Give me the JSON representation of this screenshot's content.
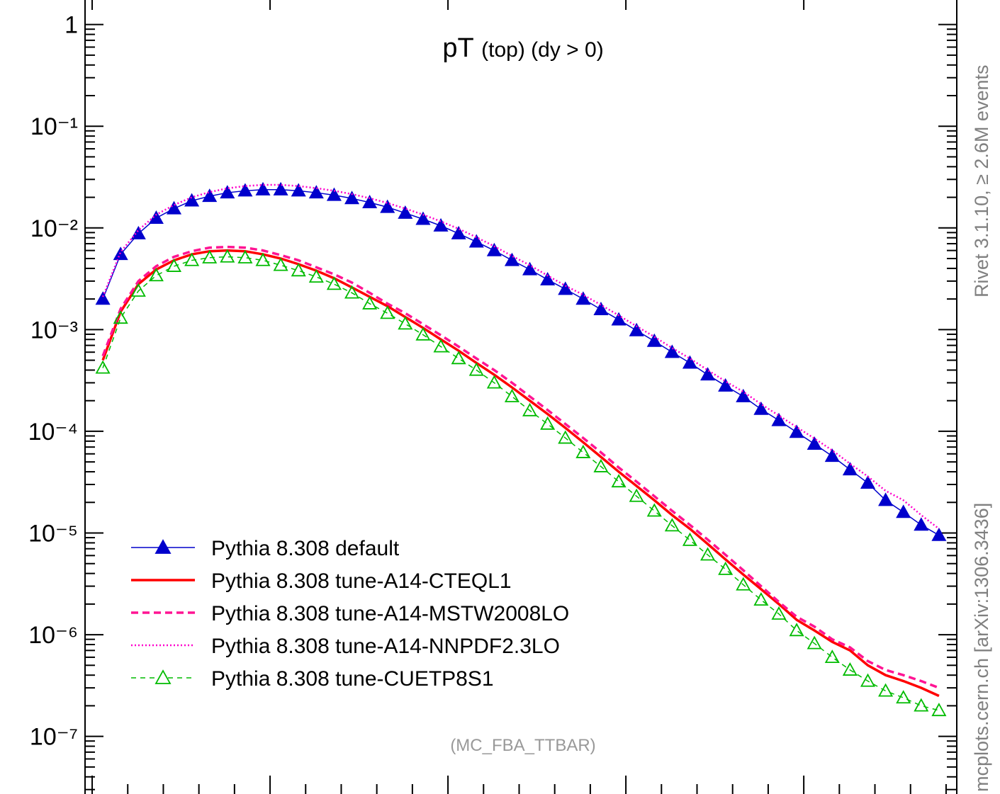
{
  "chart_data": {
    "type": "line",
    "title": {
      "main": "pT",
      "sub": "(top) (dy > 0)"
    },
    "watermark": "(MC_FBA_TTBAR)",
    "side_labels": {
      "right_top": "Rivet 3.1.10, ≥ 2.6M events",
      "right_bottom": "mcplots.cern.ch [arXiv:1306.3436]"
    },
    "y_scale": "log",
    "ylim": [
      2e-08,
      1.8
    ],
    "xlim": [
      0,
      49
    ],
    "y_tick_labels": [
      {
        "value": 1,
        "label": "1"
      },
      {
        "value": 0.1,
        "label": "10⁻¹"
      },
      {
        "value": 0.01,
        "label": "10⁻²"
      },
      {
        "value": 0.001,
        "label": "10⁻³"
      },
      {
        "value": 0.0001,
        "label": "10⁻⁴"
      },
      {
        "value": 1e-05,
        "label": "10⁻⁵"
      },
      {
        "value": 1e-06,
        "label": "10⁻⁶"
      },
      {
        "value": 1e-07,
        "label": "10⁻⁷"
      }
    ],
    "legend_position": "bottom-left",
    "grid": false,
    "x_bins": [
      1,
      2,
      3,
      4,
      5,
      6,
      7,
      8,
      9,
      10,
      11,
      12,
      13,
      14,
      15,
      16,
      17,
      18,
      19,
      20,
      21,
      22,
      23,
      24,
      25,
      26,
      27,
      28,
      29,
      30,
      31,
      32,
      33,
      34,
      35,
      36,
      37,
      38,
      39,
      40,
      41,
      42,
      43,
      44,
      45,
      46,
      47,
      48
    ],
    "series": [
      {
        "name": "Pythia 8.308 default",
        "color": "#0000cc",
        "style": "solid-thin-filled-triangle",
        "values": [
          0.002,
          0.0055,
          0.0088,
          0.0125,
          0.0155,
          0.0185,
          0.0205,
          0.0222,
          0.0232,
          0.0238,
          0.0238,
          0.0232,
          0.0222,
          0.021,
          0.0195,
          0.0178,
          0.016,
          0.014,
          0.0122,
          0.0105,
          0.0088,
          0.0073,
          0.006,
          0.0048,
          0.0039,
          0.0031,
          0.0025,
          0.002,
          0.00158,
          0.00125,
          0.00098,
          0.00077,
          0.0006,
          0.00047,
          0.00036,
          0.00028,
          0.00022,
          0.000165,
          0.000128,
          9.8e-05,
          7.5e-05,
          5.7e-05,
          4.2e-05,
          3.1e-05,
          2.1e-05,
          1.6e-05,
          1.2e-05,
          9.5e-06
        ]
      },
      {
        "name": "Pythia 8.308 tune-A14-CTEQL1",
        "color": "#ff0000",
        "style": "solid-thick",
        "values": [
          0.0005,
          0.0015,
          0.0028,
          0.0039,
          0.0048,
          0.0055,
          0.0059,
          0.006,
          0.0059,
          0.0055,
          0.005,
          0.0044,
          0.0038,
          0.0032,
          0.0026,
          0.0021,
          0.0017,
          0.00133,
          0.00104,
          0.0008,
          0.00062,
          0.00047,
          0.00036,
          0.00027,
          0.0002,
          0.000148,
          0.000108,
          7.8e-05,
          5.6e-05,
          4e-05,
          2.9e-05,
          2.1e-05,
          1.5e-05,
          1.1e-05,
          7.8e-06,
          5.5e-06,
          3.9e-06,
          2.8e-06,
          2e-06,
          1.4e-06,
          1.1e-06,
          8.5e-07,
          7e-07,
          5e-07,
          4e-07,
          3.5e-07,
          3e-07,
          2.5e-07
        ]
      },
      {
        "name": "Pythia 8.308 tune-A14-MSTW2008LO",
        "color": "#ff1493",
        "style": "dashed",
        "values": [
          0.00055,
          0.0016,
          0.003,
          0.0042,
          0.0052,
          0.0059,
          0.0064,
          0.0065,
          0.0064,
          0.006,
          0.0054,
          0.0048,
          0.0041,
          0.0035,
          0.0029,
          0.0023,
          0.0018,
          0.00145,
          0.00113,
          0.00088,
          0.00068,
          0.00052,
          0.0004,
          0.0003,
          0.00022,
          0.000162,
          0.000118,
          8.6e-05,
          6.2e-05,
          4.4e-05,
          3.2e-05,
          2.3e-05,
          1.65e-05,
          1.2e-05,
          8.6e-06,
          6.1e-06,
          4.3e-06,
          3e-06,
          2.1e-06,
          1.5e-06,
          1.2e-06,
          9e-07,
          7.5e-07,
          5.5e-07,
          4.5e-07,
          4e-07,
          3.5e-07,
          3e-07
        ]
      },
      {
        "name": "Pythia 8.308 tune-A14-NNPDF2.3LO",
        "color": "#ff00cc",
        "style": "dotted",
        "values": [
          0.0021,
          0.0058,
          0.0095,
          0.0135,
          0.0168,
          0.02,
          0.0225,
          0.0245,
          0.0258,
          0.0265,
          0.0265,
          0.0258,
          0.0246,
          0.0232,
          0.0215,
          0.0196,
          0.0176,
          0.0155,
          0.0135,
          0.0116,
          0.0098,
          0.0081,
          0.0066,
          0.0053,
          0.0043,
          0.0034,
          0.0027,
          0.0022,
          0.00175,
          0.00138,
          0.00108,
          0.00085,
          0.00066,
          0.00052,
          0.0004,
          0.00031,
          0.000245,
          0.000185,
          0.000143,
          0.00011,
          8.5e-05,
          6.5e-05,
          4.8e-05,
          3.6e-05,
          2.6e-05,
          2.1e-05,
          1.5e-05,
          1.1e-05
        ]
      },
      {
        "name": "Pythia 8.308 tune-CUETP8S1",
        "color": "#00bb00",
        "style": "dashed-open-triangle",
        "values": [
          0.00042,
          0.0013,
          0.0024,
          0.0034,
          0.0042,
          0.0048,
          0.0051,
          0.0052,
          0.0051,
          0.0048,
          0.0043,
          0.0038,
          0.0033,
          0.0028,
          0.0023,
          0.0018,
          0.00145,
          0.00114,
          0.00089,
          0.00068,
          0.00052,
          0.0004,
          0.0003,
          0.00022,
          0.00016,
          0.000118,
          8.6e-05,
          6.2e-05,
          4.5e-05,
          3.2e-05,
          2.3e-05,
          1.65e-05,
          1.18e-05,
          8.5e-06,
          6.1e-06,
          4.4e-06,
          3.1e-06,
          2.2e-06,
          1.6e-06,
          1.1e-06,
          8.2e-07,
          6e-07,
          4.5e-07,
          3.5e-07,
          2.8e-07,
          2.4e-07,
          2e-07,
          1.8e-07
        ]
      }
    ]
  }
}
